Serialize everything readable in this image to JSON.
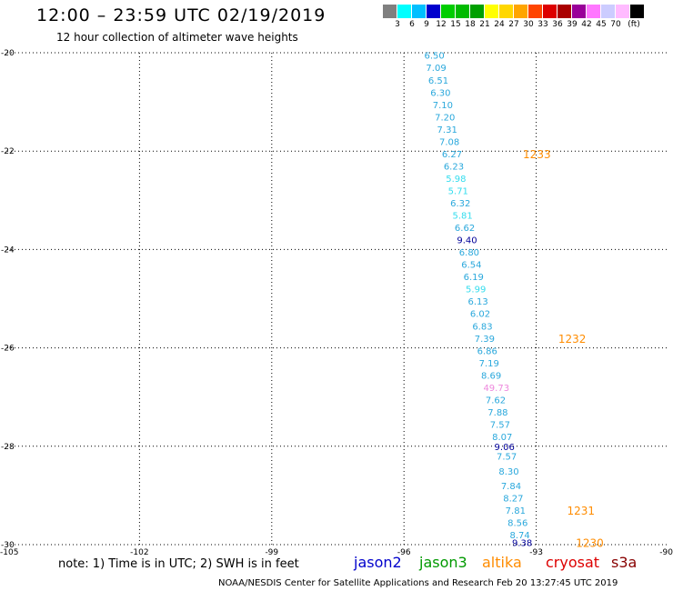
{
  "title": "12:00 – 23:59 UTC 02/19/2019",
  "subtitle": "12 hour collection of altimeter wave heights",
  "legend": {
    "colors": [
      "#808080",
      "#00ffff",
      "#00bfff",
      "#0000cd",
      "#00cd00",
      "#00bb00",
      "#00a000",
      "#ffff00",
      "#ffd700",
      "#ffa500",
      "#ff4500",
      "#dd0000",
      "#aa0000",
      "#990099",
      "#ff77ff",
      "#ccccff",
      "#ffbbff",
      "#000000"
    ],
    "labels": [
      "3",
      "6",
      "9",
      "12",
      "15",
      "18",
      "21",
      "24",
      "27",
      "30",
      "33",
      "36",
      "39",
      "42",
      "45",
      "70",
      "(ft)"
    ]
  },
  "chart_data": {
    "type": "scatter",
    "xlim": [
      -105,
      -90
    ],
    "ylim": [
      -30,
      -20
    ],
    "xticks": [
      -105,
      -102,
      -99,
      -96,
      -93,
      -90
    ],
    "yticks": [
      -20,
      -22,
      -24,
      -26,
      -28,
      -30
    ],
    "xtick_labels": [
      "-105",
      "-102",
      "-99",
      "-96",
      "-93",
      "-90"
    ],
    "ytick_labels": [
      "-20",
      "-22",
      "-24",
      "-26",
      "-28",
      "-30"
    ],
    "grid": "dotted",
    "points": [
      {
        "x": -95.54,
        "y": -20.05,
        "label": "6.50",
        "color": "#2aa8dc"
      },
      {
        "x": -95.5,
        "y": -20.3,
        "label": "7.09",
        "color": "#2aa8dc"
      },
      {
        "x": -95.45,
        "y": -20.55,
        "label": "6.51",
        "color": "#2aa8dc"
      },
      {
        "x": -95.4,
        "y": -20.8,
        "label": "6.30",
        "color": "#2aa8dc"
      },
      {
        "x": -95.35,
        "y": -21.05,
        "label": "7.10",
        "color": "#2aa8dc"
      },
      {
        "x": -95.3,
        "y": -21.3,
        "label": "7.20",
        "color": "#2aa8dc"
      },
      {
        "x": -95.25,
        "y": -21.55,
        "label": "7.31",
        "color": "#2aa8dc"
      },
      {
        "x": -95.2,
        "y": -21.8,
        "label": "7.08",
        "color": "#2aa8dc"
      },
      {
        "x": -95.14,
        "y": -22.05,
        "label": "6.27",
        "color": "#2aa8dc"
      },
      {
        "x": -95.1,
        "y": -22.3,
        "label": "6.23",
        "color": "#2aa8dc"
      },
      {
        "x": -95.05,
        "y": -22.55,
        "label": "5.98",
        "color": "#33ddee"
      },
      {
        "x": -95.0,
        "y": -22.8,
        "label": "5.71",
        "color": "#33ddee"
      },
      {
        "x": -94.95,
        "y": -23.05,
        "label": "6.32",
        "color": "#2aa8dc"
      },
      {
        "x": -94.9,
        "y": -23.3,
        "label": "5.81",
        "color": "#33ddee"
      },
      {
        "x": -94.85,
        "y": -23.55,
        "label": "6.62",
        "color": "#2aa8dc"
      },
      {
        "x": -94.8,
        "y": -23.8,
        "label": "9.40",
        "color": "#000099"
      },
      {
        "x": -94.75,
        "y": -24.05,
        "label": "6.80",
        "color": "#2aa8dc"
      },
      {
        "x": -94.7,
        "y": -24.3,
        "label": "6.54",
        "color": "#2aa8dc"
      },
      {
        "x": -94.65,
        "y": -24.55,
        "label": "6.19",
        "color": "#2aa8dc"
      },
      {
        "x": -94.6,
        "y": -24.8,
        "label": "5.99",
        "color": "#33ddee"
      },
      {
        "x": -94.55,
        "y": -25.05,
        "label": "6.13",
        "color": "#2aa8dc"
      },
      {
        "x": -94.5,
        "y": -25.3,
        "label": "6.02",
        "color": "#2aa8dc"
      },
      {
        "x": -94.45,
        "y": -25.55,
        "label": "6.83",
        "color": "#2aa8dc"
      },
      {
        "x": -94.4,
        "y": -25.8,
        "label": "7.39",
        "color": "#2aa8dc"
      },
      {
        "x": -94.34,
        "y": -26.05,
        "label": "6.86",
        "color": "#2aa8dc"
      },
      {
        "x": -94.3,
        "y": -26.3,
        "label": "7.19",
        "color": "#2aa8dc"
      },
      {
        "x": -94.25,
        "y": -26.55,
        "label": "8.69",
        "color": "#2aa8dc"
      },
      {
        "x": -94.2,
        "y": -26.8,
        "label": "49.73",
        "color": "#ee88dd"
      },
      {
        "x": -94.15,
        "y": -27.05,
        "label": "7.62",
        "color": "#2aa8dc"
      },
      {
        "x": -94.1,
        "y": -27.3,
        "label": "7.88",
        "color": "#2aa8dc"
      },
      {
        "x": -94.05,
        "y": -27.55,
        "label": "7.57",
        "color": "#2aa8dc"
      },
      {
        "x": -94.0,
        "y": -27.8,
        "label": "8.07",
        "color": "#2aa8dc"
      },
      {
        "x": -93.95,
        "y": -28.0,
        "label": "9.06",
        "color": "#000099"
      },
      {
        "x": -93.9,
        "y": -28.2,
        "label": "7.57",
        "color": "#2aa8dc"
      },
      {
        "x": -93.85,
        "y": -28.5,
        "label": "8.30",
        "color": "#2aa8dc"
      },
      {
        "x": -93.8,
        "y": -28.8,
        "label": "7.84",
        "color": "#2aa8dc"
      },
      {
        "x": -93.75,
        "y": -29.05,
        "label": "8.27",
        "color": "#2aa8dc"
      },
      {
        "x": -93.7,
        "y": -29.3,
        "label": "7.81",
        "color": "#2aa8dc"
      },
      {
        "x": -93.65,
        "y": -29.55,
        "label": "8.56",
        "color": "#2aa8dc"
      },
      {
        "x": -93.6,
        "y": -29.8,
        "label": "8.74",
        "color": "#2aa8dc"
      },
      {
        "x": -93.55,
        "y": -29.95,
        "label": "9.38",
        "color": "#000099"
      }
    ],
    "time_labels": [
      {
        "x": -93.3,
        "y": -22.05,
        "label": "1233",
        "color": "#ff8c00"
      },
      {
        "x": -92.5,
        "y": -25.8,
        "label": "1232",
        "color": "#ff8c00"
      },
      {
        "x": -92.3,
        "y": -29.3,
        "label": "1231",
        "color": "#ff8c00"
      },
      {
        "x": -92.1,
        "y": -29.95,
        "label": "1230",
        "color": "#ff8c00"
      }
    ]
  },
  "note": "note:  1)  Time is in UTC;  2)  SWH is in feet",
  "satellites": [
    {
      "name": "jason2",
      "color": "#0000cc"
    },
    {
      "name": "jason3",
      "color": "#009900"
    },
    {
      "name": "altika",
      "color": "#ff8c00"
    },
    {
      "name": "cryosat",
      "color": "#dd0000"
    },
    {
      "name": "s3a",
      "color": "#880000"
    }
  ],
  "footer": "NOAA/NESDIS Center for Satellite Applications and Research    Feb 20 13:27:45 UTC 2019"
}
